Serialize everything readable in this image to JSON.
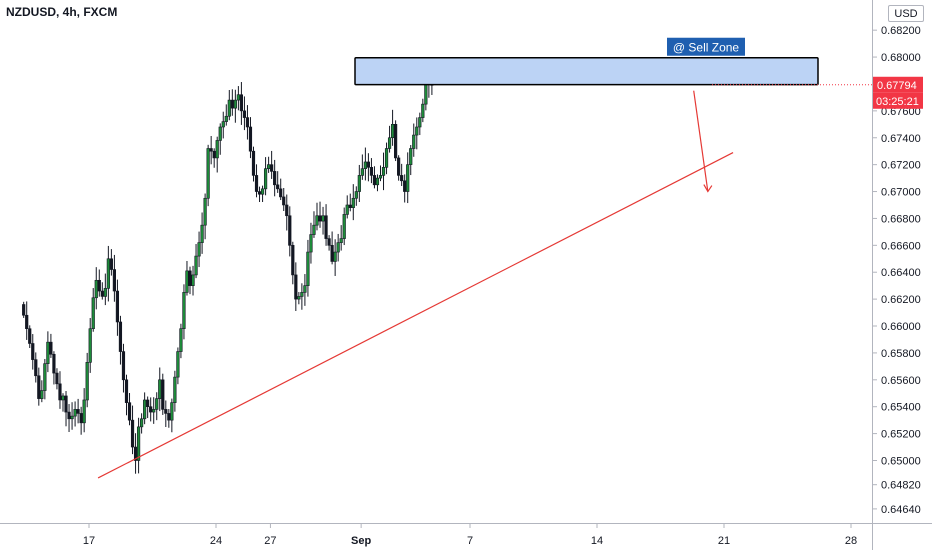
{
  "header": {
    "symbol": "NZDUSD, 4h, FXCM",
    "currency_button": "USD"
  },
  "annotations": {
    "sell_zone_label": "@ Sell Zone",
    "last_price_label": "0.67794",
    "countdown_label": "03:25:21",
    "sell_zone": [
      0.67795,
      0.67995
    ],
    "trendline": [
      [
        0.5,
        0.6487
      ],
      [
        35.5,
        0.6729
      ]
    ],
    "arrow": [
      [
        33.0,
        0.6778
      ],
      [
        34.0,
        0.67
      ]
    ],
    "colors": {
      "up": "#26a69a",
      "down": "#131722",
      "up_body": "#1e8c3a",
      "zone_fill": "#bcd3f5",
      "zone_border": "#000000",
      "trend": "#e53935",
      "price_tag": "#f23645",
      "label_bg": "#1f5fb0"
    }
  },
  "chart_data": {
    "type": "candlestick",
    "title": "NZDUSD, 4h, FXCM",
    "ylim": [
      0.6455,
      0.6835
    ],
    "y_ticks": [
      "0.68200",
      "0.68000",
      "0.67600",
      "0.67400",
      "0.67200",
      "0.67000",
      "0.66800",
      "0.66600",
      "0.66400",
      "0.66200",
      "0.66000",
      "0.65800",
      "0.65600",
      "0.65400",
      "0.65200",
      "0.65000",
      "0.64820",
      "0.64640"
    ],
    "x_ticks": [
      {
        "label": "17",
        "day": 0
      },
      {
        "label": "24",
        "day": 7
      },
      {
        "label": "27",
        "day": 10
      },
      {
        "label": "Sep",
        "day": 15,
        "bold": true
      },
      {
        "label": "7",
        "day": 21
      },
      {
        "label": "14",
        "day": 28
      },
      {
        "label": "21",
        "day": 35
      },
      {
        "label": "28",
        "day": 42
      }
    ],
    "x_axis_note": "trading days since Aug 17 (weekends skipped)",
    "candles_per_day": 6,
    "last_price": 0.67794,
    "closes": [
      0.6608,
      0.6598,
      0.6587,
      0.6575,
      0.6563,
      0.6546,
      0.6552,
      0.6572,
      0.6588,
      0.6579,
      0.6565,
      0.6557,
      0.6545,
      0.6548,
      0.6536,
      0.6531,
      0.6533,
      0.6538,
      0.6535,
      0.6528,
      0.6545,
      0.6573,
      0.6598,
      0.6621,
      0.6634,
      0.6626,
      0.6622,
      0.6628,
      0.665,
      0.6642,
      0.6626,
      0.6603,
      0.6581,
      0.656,
      0.6543,
      0.653,
      0.651,
      0.65,
      0.6525,
      0.6531,
      0.6545,
      0.654,
      0.6536,
      0.6538,
      0.6546,
      0.656,
      0.6538,
      0.6535,
      0.653,
      0.6543,
      0.6562,
      0.6581,
      0.6598,
      0.6625,
      0.6641,
      0.663,
      0.6638,
      0.6652,
      0.6662,
      0.6675,
      0.6695,
      0.6732,
      0.673,
      0.6725,
      0.6738,
      0.6748,
      0.6752,
      0.6756,
      0.6768,
      0.6762,
      0.6768,
      0.6772,
      0.676,
      0.6755,
      0.6748,
      0.673,
      0.6712,
      0.67,
      0.6698,
      0.6702,
      0.6717,
      0.672,
      0.6715,
      0.6705,
      0.6702,
      0.6696,
      0.669,
      0.6682,
      0.666,
      0.6638,
      0.662,
      0.6622,
      0.6625,
      0.663,
      0.6655,
      0.6668,
      0.6675,
      0.6682,
      0.6678,
      0.6682,
      0.6665,
      0.666,
      0.6648,
      0.6655,
      0.6662,
      0.6665,
      0.6683,
      0.669,
      0.6688,
      0.6695,
      0.67,
      0.6712,
      0.6717,
      0.6722,
      0.6718,
      0.6712,
      0.6705,
      0.671,
      0.6712,
      0.6718,
      0.6732,
      0.674,
      0.675,
      0.6725,
      0.6712,
      0.6708,
      0.67,
      0.672,
      0.6732,
      0.6742,
      0.6748,
      0.6755,
      0.6765,
      0.678,
      0.6785,
      0.6779
    ]
  }
}
